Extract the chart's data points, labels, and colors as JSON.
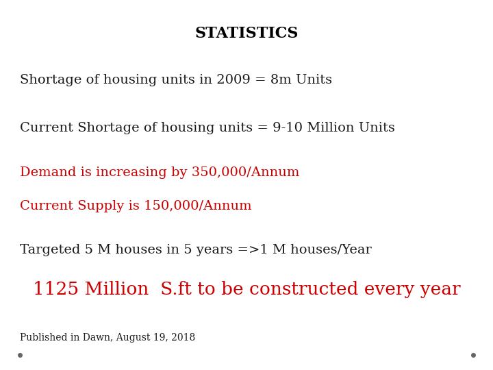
{
  "title": "STATISTICS",
  "title_fontsize": 16,
  "title_color": "#000000",
  "line1": "Shortage of housing units in 2009 = 8m Units",
  "line2": "Current Shortage of housing units = 9-10 Million Units",
  "line3a": "Demand is increasing by 350,000/Annum",
  "line3b": "Current Supply is 150,000/Annum",
  "line4": "Targeted 5 M houses in 5 years =>1 M houses/Year",
  "line5": "1125 Million  S.ft to be constructed every year",
  "line6": "Published in Dawn, August 19, 2018",
  "black_color": "#1a1a1a",
  "red_color": "#cc0000",
  "body_fontsize": 14,
  "highlight_fontsize": 19,
  "small_fontsize": 10,
  "background_color": "#ffffff",
  "dot_color": "#666666"
}
